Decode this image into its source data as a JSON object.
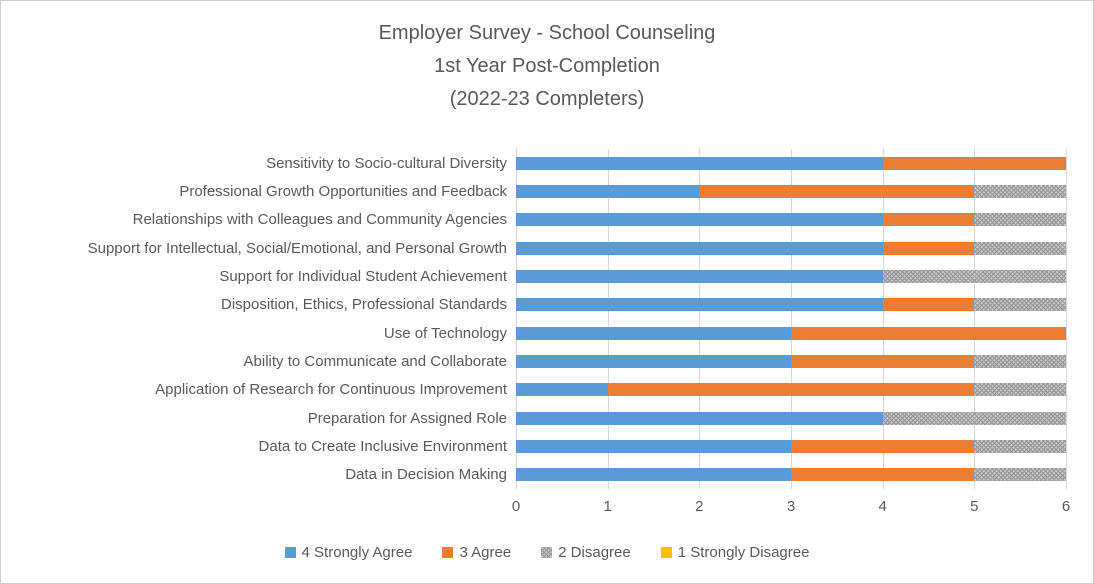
{
  "title": {
    "lines": [
      "Employer Survey - School Counseling",
      "1st Year Post-Completion",
      "(2022-23 Completers)"
    ]
  },
  "colors": {
    "strongly_agree": "#5B9BD5",
    "agree": "#ED7D31",
    "disagree": "#A5A5A5",
    "strongly_disagree": "#FFC000",
    "text": "#595959",
    "gridline": "#D9D9D9"
  },
  "chart_data": {
    "type": "bar",
    "orientation": "horizontal",
    "stacked": true,
    "title": "Employer Survey - School Counseling 1st Year Post-Completion (2022-23 Completers)",
    "categories": [
      "Sensitivity to Socio-cultural Diversity",
      "Professional Growth Opportunities and Feedback",
      "Relationships with Colleagues and Community Agencies",
      "Support for Intellectual, Social/Emotional, and Personal Growth",
      "Support for Individual Student Achievement",
      "Disposition, Ethics, Professional Standards",
      "Use of Technology",
      "Ability to Communicate and Collaborate",
      "Application of Research for Continuous Improvement",
      "Preparation for Assigned Role",
      "Data to Create Inclusive Environment",
      "Data in Decision Making"
    ],
    "series": [
      {
        "name": "4 Strongly Agree",
        "color": "#5B9BD5",
        "pattern": "solid",
        "values": [
          4,
          2,
          4,
          4,
          4,
          4,
          3,
          3,
          1,
          4,
          3,
          3
        ]
      },
      {
        "name": "3 Agree",
        "color": "#ED7D31",
        "pattern": "solid",
        "values": [
          2,
          3,
          1,
          1,
          0,
          1,
          3,
          2,
          4,
          0,
          2,
          2
        ]
      },
      {
        "name": "2 Disagree",
        "color": "#A5A5A5",
        "pattern": "dotted-crosshatch",
        "values": [
          0,
          1,
          1,
          1,
          2,
          1,
          0,
          1,
          1,
          2,
          1,
          1
        ]
      },
      {
        "name": "1 Strongly Disagree",
        "color": "#FFC000",
        "pattern": "solid",
        "values": [
          0,
          0,
          0,
          0,
          0,
          0,
          0,
          0,
          0,
          0,
          0,
          0
        ]
      }
    ],
    "x_ticks": [
      "0",
      "1",
      "2",
      "3",
      "4",
      "5",
      "6"
    ],
    "xlim": [
      0,
      6
    ],
    "grid": true,
    "legend_position": "bottom"
  }
}
